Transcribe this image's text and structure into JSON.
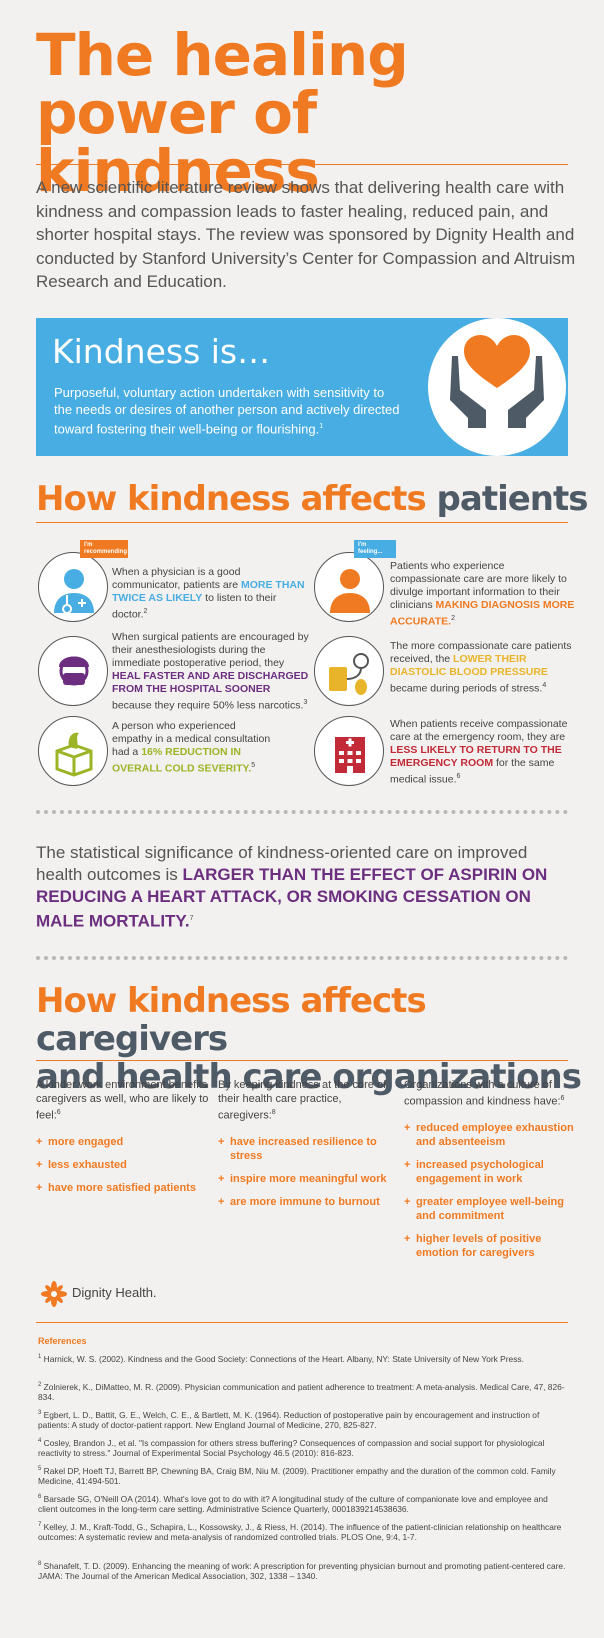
{
  "title": "The healing power of kindness",
  "intro": "A new scientific literature review shows that delivering health care with kindness and compassion leads to faster healing, reduced pain, and shorter hospital stays. The review was sponsored by Dignity Health and conducted by Stanford University’s Center for Compassion and Altruism Research and Education.",
  "kindness": {
    "heading": "Kindness is…",
    "definition": "Purposeful, voluntary action undertaken with sensitivity to the needs or desires of another person and actively directed toward fostering their well-being or flourishing.",
    "note": "1"
  },
  "patients_section": {
    "heading_orange": "How kindness affects",
    "heading_gray": "patients"
  },
  "patients": {
    "doctor": {
      "tag": "I'm recommending",
      "pre": "When a physician is a good communicator, patients are ",
      "hl": "MORE THAN TWICE AS LIKELY",
      "post": " to listen to their doctor.",
      "note": "2"
    },
    "patient": {
      "tag": "I'm feeling...",
      "pre": "Patients who experience compassionate care are more likely to divulge important information to their clinicians ",
      "hl": "MAKING DIAGNOSIS MORE ACCURATE.",
      "note": "2"
    },
    "surgeon": {
      "pre": "When surgical patients are encouraged by their anesthesiologists during the immediate postoperative period, they ",
      "hl": "HEAL FASTER AND ARE DISCHARGED FROM THE HOSPITAL SOONER",
      "post": " because they require 50% less narcotics.",
      "note": "3"
    },
    "bp": {
      "pre": "The more compassionate care patients received, the ",
      "hl": "LOWER THEIR DIASTOLIC BLOOD PRESSURE",
      "post": " became during periods of stress.",
      "note": "4"
    },
    "tissue": {
      "pre": "A person who experienced empathy in a medical consultation had a ",
      "hl": "16% REDUCTION IN OVERALL COLD SEVERITY.",
      "note": "5"
    },
    "er": {
      "pre": "When patients receive compassionate care at the emergency room, they are ",
      "hl": "LESS LIKELY TO RETURN TO THE EMERGENCY ROOM",
      "post": " for the same medical issue.",
      "note": "6"
    }
  },
  "stat": {
    "pre": "The statistical significance of kindness-oriented care on improved health outcomes is ",
    "hl": "LARGER THAN THE EFFECT OF ASPIRIN ON REDUCING A HEART ATTACK, OR SMOKING CESSATION ON MALE MORTALITY.",
    "note": "7"
  },
  "caregivers_section": {
    "heading_orange": "How kindness affects",
    "heading_gray1": "caregivers",
    "heading_gray2": "and health care organizations"
  },
  "columns": [
    {
      "intro": "A kinder work environment benefits caregivers as well, who are likely to feel:",
      "note": "6",
      "items": [
        "more engaged",
        "less exhausted",
        "have more satisfied patients"
      ]
    },
    {
      "intro": "By keeping kindness at the core of their health care practice, caregivers:",
      "note": "8",
      "items": [
        "have increased resilience to stress",
        "inspire more meaningful work",
        "are more immune to burnout"
      ]
    },
    {
      "intro": "Organizations with a culture of compassion and kindness have:",
      "note": "6",
      "items": [
        "reduced employee exhaustion and absenteeism",
        "increased psychological engagement in work",
        "greater employee well-being and commitment",
        "higher levels of positive emotion for caregivers"
      ]
    }
  ],
  "logo_text": "Dignity Health.",
  "references_heading": "References",
  "references": [
    {
      "n": "1",
      "text": "Harnick, W. S. (2002). Kindness and the Good Society: Connections of the Heart. Albany, NY: State University of New York Press."
    },
    {
      "n": "2",
      "text": "Zolnierek, K., DiMatteo, M. R. (2009). Physician communication and patient adherence to treatment: A meta-analysis. Medical Care, 47, 826-834."
    },
    {
      "n": "3",
      "text": "Egbert, L. D., Battit, G. E., Welch, C. E., & Bartlett, M. K. (1964). Reduction of postoperative pain by encouragement and instruction of patients: A study of doctor-patient rapport. New England Journal of Medicine, 270, 825-827."
    },
    {
      "n": "4",
      "text": "Cosley, Brandon J., et al. \"Is compassion for others stress buffering? Consequences of compassion and social support for physiological reactivity to stress.\" Journal of Experimental Social Psychology 46.5 (2010): 816-823."
    },
    {
      "n": "5",
      "text": "Rakel DP, Hoeft TJ, Barrett BP, Chewning BA, Craig BM, Niu M. (2009). Practitioner empathy and the duration of the common cold. Family Medicine, 41:494-501."
    },
    {
      "n": "6",
      "text": "Barsade SG, O'Neill OA (2014). What's love got to do with it? A longitudinal study of the culture of companionate love and employee and client outcomes in the long-term care setting. Administrative Science Quarterly, 0001839214538636."
    },
    {
      "n": "7",
      "text": "Kelley, J. M., Kraft-Todd, G., Schapira, L., Kossowsky, J., & Riess, H. (2014). The influence of the patient-clinician relationship on healthcare outcomes: A systematic review and meta-analysis of randomized controlled trials. PLOS One, 9:4, 1-7."
    },
    {
      "n": "8",
      "text": "Shanafelt, T. D. (2009). Enhancing the meaning of work: A prescription for preventing physician burnout and promoting patient-centered care. JAMA: The Journal of the American Medical Association, 302, 1338 – 1340."
    }
  ]
}
